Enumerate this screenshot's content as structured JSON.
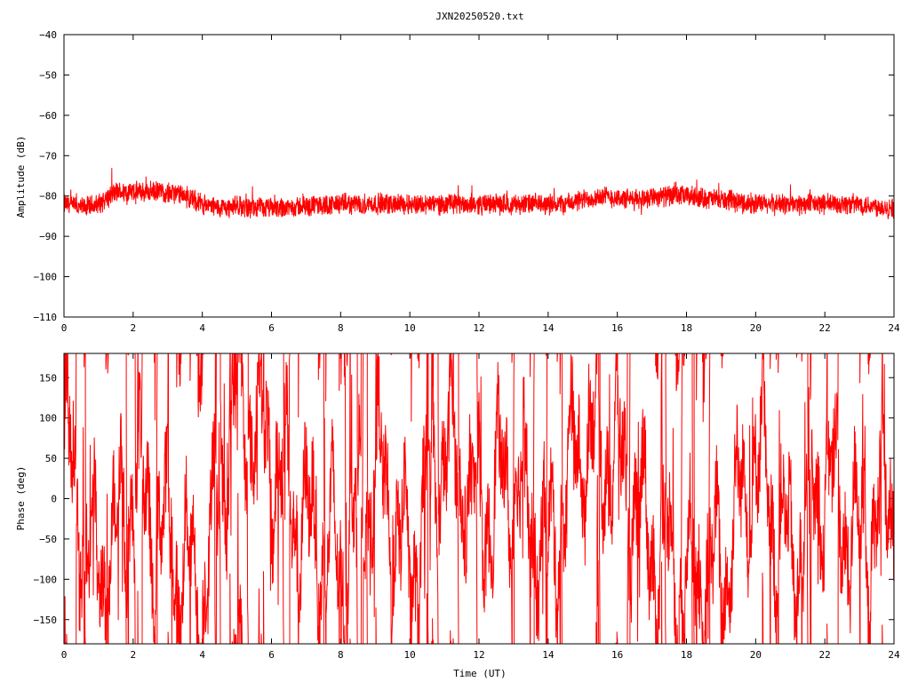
{
  "page": {
    "title": "JXN20250520.txt"
  },
  "chart_data": [
    {
      "type": "line",
      "id": "amplitude",
      "title": "JXN20250520.txt",
      "xlabel": "",
      "ylabel": "Amplitude (dB)",
      "xlim": [
        0,
        24
      ],
      "ylim": [
        -110,
        -40
      ],
      "xticks": [
        0,
        2,
        4,
        6,
        8,
        10,
        12,
        14,
        16,
        18,
        20,
        22,
        24
      ],
      "yticks": [
        -110,
        -100,
        -90,
        -80,
        -70,
        -60,
        -50,
        -40
      ],
      "color": "#ff0000",
      "grid": false,
      "series": [
        {
          "x": [
            0,
            0.5,
            1.0,
            1.5,
            2.0,
            2.5,
            3.0,
            3.5,
            4.0,
            4.5,
            5.0,
            5.5,
            6.0,
            7.0,
            8.0,
            9.0,
            10.0,
            11.0,
            12.0,
            13.0,
            14.0,
            14.5,
            15.0,
            15.5,
            16.0,
            16.5,
            17.0,
            17.5,
            18.0,
            19.0,
            20.0,
            21.0,
            22.0,
            23.0,
            24.0
          ],
          "y": [
            -82,
            -83,
            -82,
            -79,
            -79,
            -79,
            -79,
            -80,
            -82,
            -83,
            -82.5,
            -83,
            -83,
            -82.5,
            -82,
            -82,
            -82,
            -82,
            -82,
            -82,
            -82,
            -82,
            -81,
            -80,
            -80.5,
            -81,
            -80,
            -80,
            -80,
            -81,
            -82,
            -82,
            -82,
            -82,
            -83
          ],
          "noise_db": 2.5
        }
      ]
    },
    {
      "type": "line",
      "id": "phase",
      "title": "",
      "xlabel": "Time (UT)",
      "ylabel": "Phase (deg)",
      "xlim": [
        0,
        24
      ],
      "ylim": [
        -180,
        180
      ],
      "xticks": [
        0,
        2,
        4,
        6,
        8,
        10,
        12,
        14,
        16,
        18,
        20,
        22,
        24
      ],
      "yticks": [
        -150,
        -100,
        -50,
        0,
        50,
        100,
        150
      ],
      "color": "#ff0000",
      "grid": false,
      "series": [
        {
          "description_wraps": true,
          "x": [
            0,
            1,
            2,
            3,
            4,
            5,
            6,
            7,
            8,
            9,
            10,
            11,
            12,
            13,
            14,
            15,
            16,
            17,
            18,
            19,
            20,
            21,
            22,
            23,
            24
          ],
          "y": [
            60,
            -100,
            20,
            -60,
            -120,
            130,
            60,
            -40,
            -80,
            40,
            -90,
            70,
            -20,
            30,
            -70,
            80,
            50,
            -60,
            -100,
            -90,
            50,
            -80,
            30,
            -60,
            10
          ]
        }
      ]
    }
  ]
}
